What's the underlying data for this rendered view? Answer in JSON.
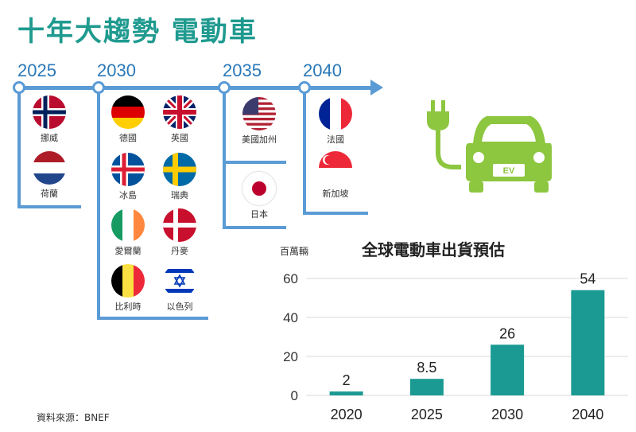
{
  "title": "十年大趨勢  電動車",
  "timeline": {
    "years": [
      "2025",
      "2030",
      "2035",
      "2040"
    ],
    "groups": [
      {
        "year": "2025",
        "countries": [
          {
            "label": "挪威",
            "icon": "norway-flag-icon"
          },
          {
            "label": "荷蘭",
            "icon": "netherlands-flag-icon"
          }
        ]
      },
      {
        "year": "2030",
        "countries": [
          {
            "label": "德國",
            "icon": "germany-flag-icon"
          },
          {
            "label": "英國",
            "icon": "uk-flag-icon"
          },
          {
            "label": "冰島",
            "icon": "iceland-flag-icon"
          },
          {
            "label": "瑞典",
            "icon": "sweden-flag-icon"
          },
          {
            "label": "愛爾蘭",
            "icon": "ireland-flag-icon"
          },
          {
            "label": "丹麥",
            "icon": "denmark-flag-icon"
          },
          {
            "label": "比利時",
            "icon": "belgium-flag-icon"
          },
          {
            "label": "以色列",
            "icon": "israel-flag-icon"
          }
        ]
      },
      {
        "year": "2035",
        "countries": [
          {
            "label": "美國加州",
            "icon": "usa-flag-icon"
          },
          {
            "label": "日本",
            "icon": "japan-flag-icon"
          }
        ]
      },
      {
        "year": "2040",
        "countries": [
          {
            "label": "法國",
            "icon": "france-flag-icon"
          },
          {
            "label": "新加坡",
            "icon": "singapore-flag-icon"
          }
        ]
      }
    ]
  },
  "ev_icon": {
    "name": "ev-car-plug-icon",
    "badge": "EV",
    "color": "#8dc63f"
  },
  "colors": {
    "title": "#1f9a8f",
    "timeline": "#5b9bd5",
    "bar": "#1a9a92",
    "grid": "#d9d9d9"
  },
  "source": "資料來源：BNEF",
  "chart_data": {
    "type": "bar",
    "title": "全球電動車出貨預估",
    "ylabel": "百萬輛",
    "xlabel": "",
    "categories": [
      "2020",
      "2025",
      "2030",
      "2040"
    ],
    "values": [
      2,
      8.5,
      26,
      54
    ],
    "value_labels": [
      "2",
      "8.5",
      "26",
      "54"
    ],
    "ylim": [
      0,
      60
    ],
    "yticks": [
      0,
      20,
      40,
      60
    ],
    "grid": true,
    "legend": "none"
  }
}
